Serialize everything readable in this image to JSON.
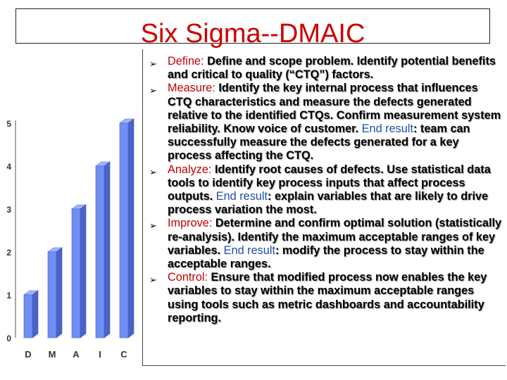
{
  "title": "Six Sigma--DMAIC",
  "bullets": [
    {
      "label": "Define:",
      "text": "Define and scope problem. Identify potential benefits and critical to quality (“CTQ”) factors.",
      "result": null,
      "tail": null
    },
    {
      "label": "Measure:",
      "text": "Identify the key internal process that influences CTQ characteristics and measure the defects generated relative to the identified CTQs. Confirm measurement system reliability. Know voice of customer.",
      "result": "End result",
      "tail": ": team can successfully measure the defects generated for a key process affecting the CTQ."
    },
    {
      "label": "Analyze:",
      "text": "Identify root causes of defects. Use statistical data tools to identify key process inputs that affect process outputs.",
      "result": "End result",
      "tail": ": explain variables that are likely to drive process variation the most."
    },
    {
      "label": "Improve:",
      "text": "Determine and confirm optimal solution (statistically re-analysis). Identify the maximum acceptable ranges of key variables.",
      "result": "End result",
      "tail": ": modify the process to stay within the acceptable ranges."
    },
    {
      "label": "Control:",
      "text": "Ensure that modified process now enables the key variables to stay within the maximum acceptable ranges using tools such as metric dashboards and accountability reporting.",
      "result": null,
      "tail": null
    }
  ],
  "chart_data": {
    "type": "bar",
    "categories": [
      "D",
      "M",
      "A",
      "I",
      "C"
    ],
    "values": [
      1,
      2,
      3,
      4,
      5
    ],
    "yticks": [
      "0",
      "1",
      "2",
      "3",
      "4",
      "5"
    ],
    "ylim": [
      0,
      5
    ]
  },
  "colors": {
    "title": "#cc0000",
    "label": "#c00000",
    "highlight": "#1f4fa8",
    "bar": "#6f8ff2"
  }
}
